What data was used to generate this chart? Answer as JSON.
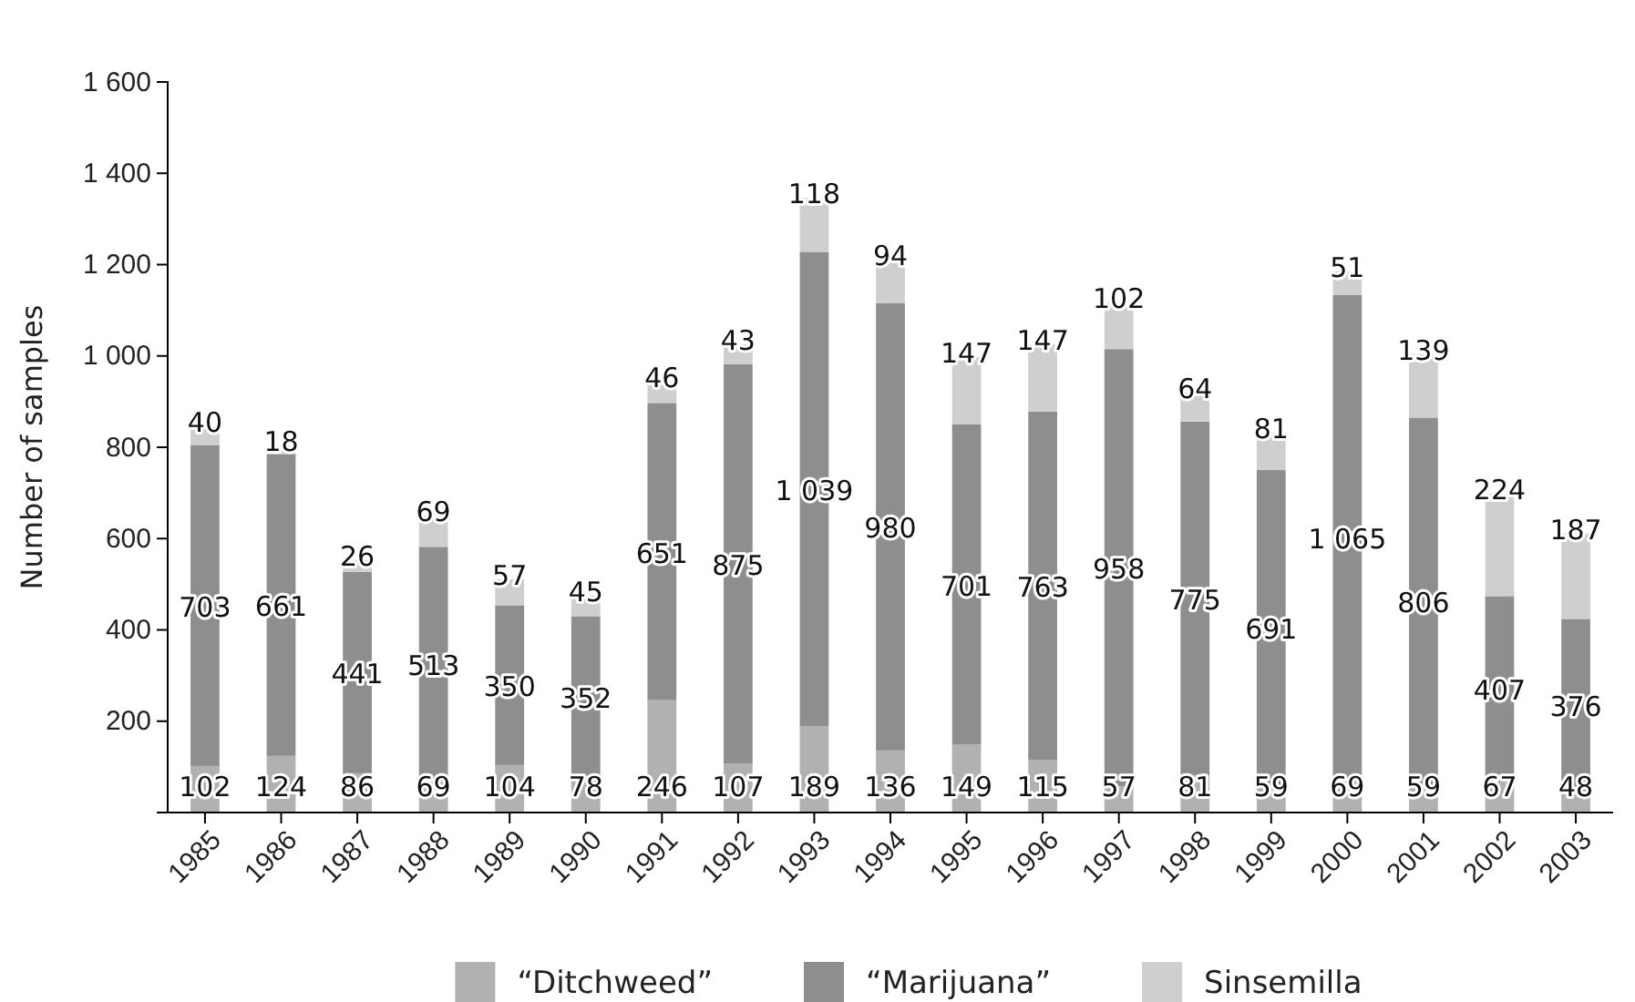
{
  "chart_data": {
    "type": "bar",
    "stacked": true,
    "ylabel": "Number of samples",
    "categories": [
      "1985",
      "1986",
      "1987",
      "1988",
      "1989",
      "1990",
      "1991",
      "1992",
      "1993",
      "1994",
      "1995",
      "1996",
      "1997",
      "1998",
      "1999",
      "2000",
      "2001",
      "2002",
      "2003"
    ],
    "series": [
      {
        "name": "“Ditchweed”",
        "color": "#b1b1b3",
        "values": [
          102,
          124,
          86,
          69,
          104,
          78,
          246,
          107,
          189,
          136,
          149,
          115,
          57,
          81,
          59,
          69,
          59,
          67,
          48
        ]
      },
      {
        "name": "“Marijuana”",
        "color": "#8e8e90",
        "values": [
          703,
          661,
          441,
          513,
          350,
          352,
          651,
          875,
          1039,
          980,
          701,
          763,
          958,
          775,
          691,
          1065,
          806,
          407,
          376
        ]
      },
      {
        "name": "Sinsemilla",
        "color": "#cfcfd0",
        "values": [
          40,
          18,
          26,
          69,
          57,
          45,
          46,
          43,
          118,
          94,
          147,
          147,
          102,
          64,
          81,
          51,
          139,
          224,
          187
        ]
      }
    ],
    "ylim": [
      0,
      1600
    ],
    "yticks": [
      200,
      400,
      600,
      800,
      {
        "value": 1000,
        "label": "1 000"
      },
      {
        "value": 1200,
        "label": "1 200"
      },
      {
        "value": 1400,
        "label": "1 400"
      },
      {
        "value": 1600,
        "label": "1 600"
      }
    ],
    "data_labels": true,
    "legend": "bottom",
    "grid": false
  }
}
